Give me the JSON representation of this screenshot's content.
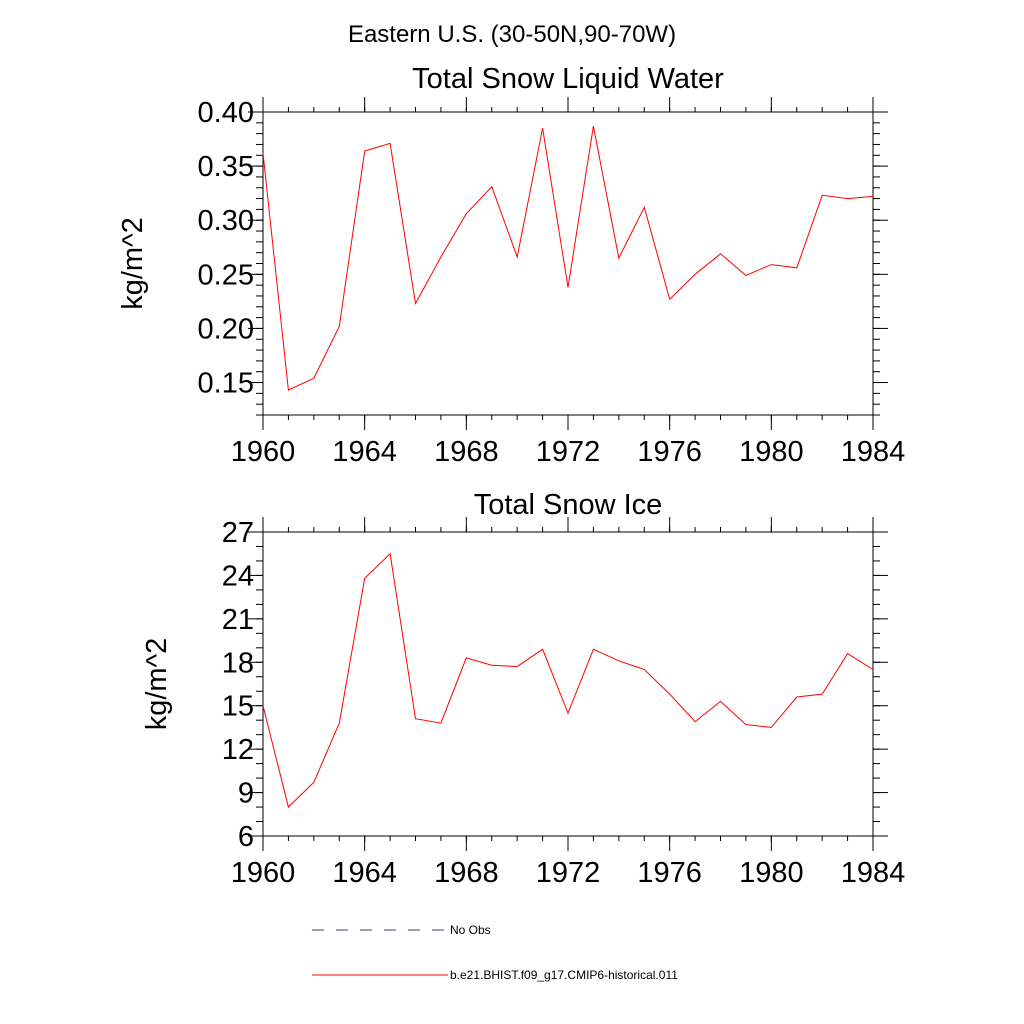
{
  "figure": {
    "title": "Eastern U.S. (30-50N,90-70W)"
  },
  "chart_data": [
    {
      "type": "line",
      "title": "Total Snow Liquid Water",
      "xlabel": "",
      "ylabel": "kg/m^2",
      "xlim": [
        1960,
        1984
      ],
      "ylim": [
        0.12,
        0.4
      ],
      "x_ticks": [
        "1960",
        "1964",
        "1968",
        "1972",
        "1976",
        "1980",
        "1984"
      ],
      "y_ticks": [
        "0.15",
        "0.20",
        "0.25",
        "0.30",
        "0.35",
        "0.40"
      ],
      "grid": false,
      "series": [
        {
          "name": "b.e21.BHIST.f09_g17.CMIP6-historical.011",
          "color": "#ff0000",
          "x": [
            1960,
            1961,
            1962,
            1963,
            1964,
            1965,
            1966,
            1967,
            1968,
            1969,
            1970,
            1971,
            1972,
            1973,
            1974,
            1975,
            1976,
            1977,
            1978,
            1979,
            1980,
            1981,
            1982,
            1983,
            1984
          ],
          "y": [
            0.362,
            0.143,
            0.154,
            0.202,
            0.364,
            0.371,
            0.223,
            0.266,
            0.306,
            0.331,
            0.266,
            0.385,
            0.238,
            0.387,
            0.265,
            0.312,
            0.227,
            0.25,
            0.269,
            0.249,
            0.259,
            0.256,
            0.323,
            0.32,
            0.322
          ]
        }
      ]
    },
    {
      "type": "line",
      "title": "Total Snow Ice",
      "xlabel": "",
      "ylabel": "kg/m^2",
      "xlim": [
        1960,
        1984
      ],
      "ylim": [
        6,
        27
      ],
      "x_ticks": [
        "1960",
        "1964",
        "1968",
        "1972",
        "1976",
        "1980",
        "1984"
      ],
      "y_ticks": [
        "6",
        "9",
        "12",
        "15",
        "18",
        "21",
        "24",
        "27"
      ],
      "grid": false,
      "series": [
        {
          "name": "b.e21.BHIST.f09_g17.CMIP6-historical.011",
          "color": "#ff0000",
          "x": [
            1960,
            1961,
            1962,
            1963,
            1964,
            1965,
            1966,
            1967,
            1968,
            1969,
            1970,
            1971,
            1972,
            1973,
            1974,
            1975,
            1976,
            1977,
            1978,
            1979,
            1980,
            1981,
            1982,
            1983,
            1984
          ],
          "y": [
            15.0,
            8.0,
            9.7,
            13.8,
            23.8,
            25.5,
            14.1,
            13.8,
            18.3,
            17.8,
            17.7,
            18.9,
            14.5,
            18.9,
            18.1,
            17.5,
            15.8,
            13.9,
            15.3,
            13.7,
            13.5,
            15.6,
            15.8,
            18.6,
            17.5
          ]
        }
      ]
    }
  ],
  "legend": {
    "items": [
      {
        "label": "No Obs",
        "style": "dashed",
        "color": "#3a3a6a"
      },
      {
        "label": "b.e21.BHIST.f09_g17.CMIP6-historical.011",
        "style": "solid",
        "color": "#ff0000"
      }
    ]
  }
}
